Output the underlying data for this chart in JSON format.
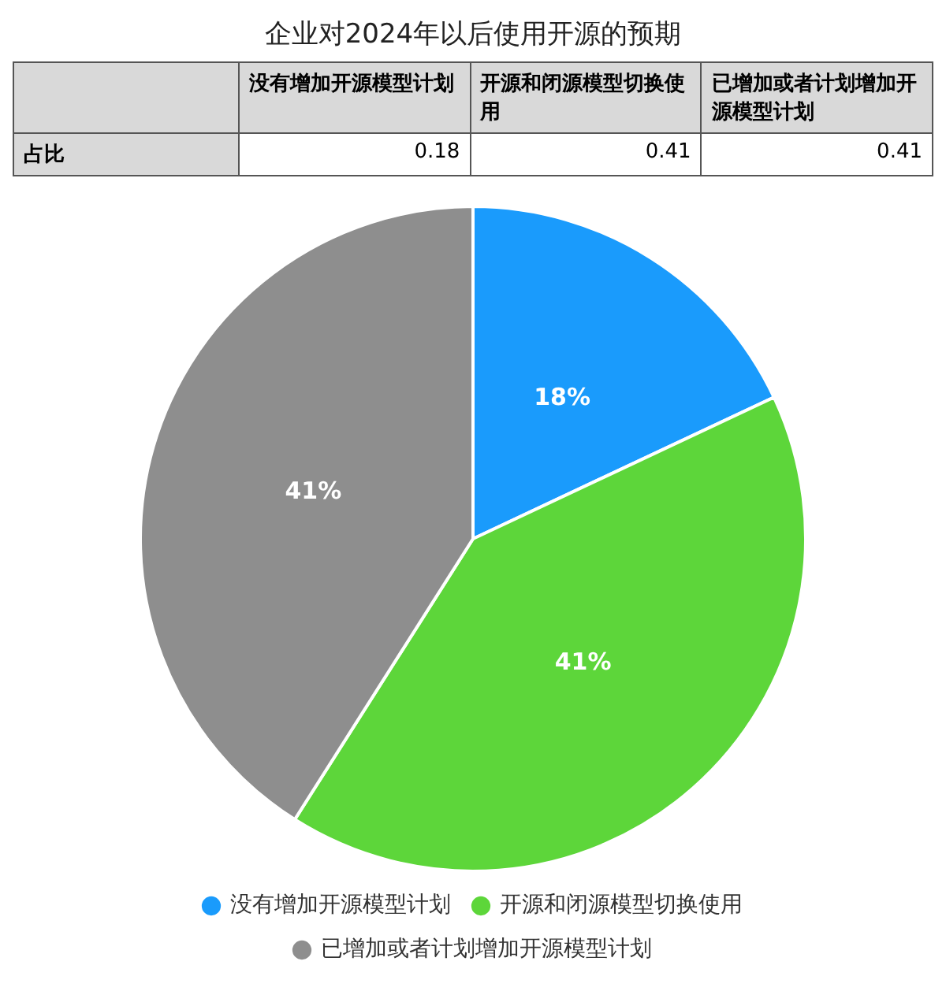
{
  "chart_data": {
    "type": "pie",
    "title": "企业对2024年以后使用开源的预期",
    "categories": [
      "没有增加开源模型计划",
      "开源和闭源模型切换使用",
      "已增加或者计划增加开源模型计划"
    ],
    "values": [
      18,
      41,
      41
    ],
    "colors": [
      "#1a9bfc",
      "#5dd63a",
      "#8e8e8e"
    ],
    "value_labels": [
      "18%",
      "41%",
      "41%"
    ],
    "annotations": [
      "占比",
      "0.18",
      "0.41",
      "0.41"
    ],
    "legend": "bottom"
  }
}
